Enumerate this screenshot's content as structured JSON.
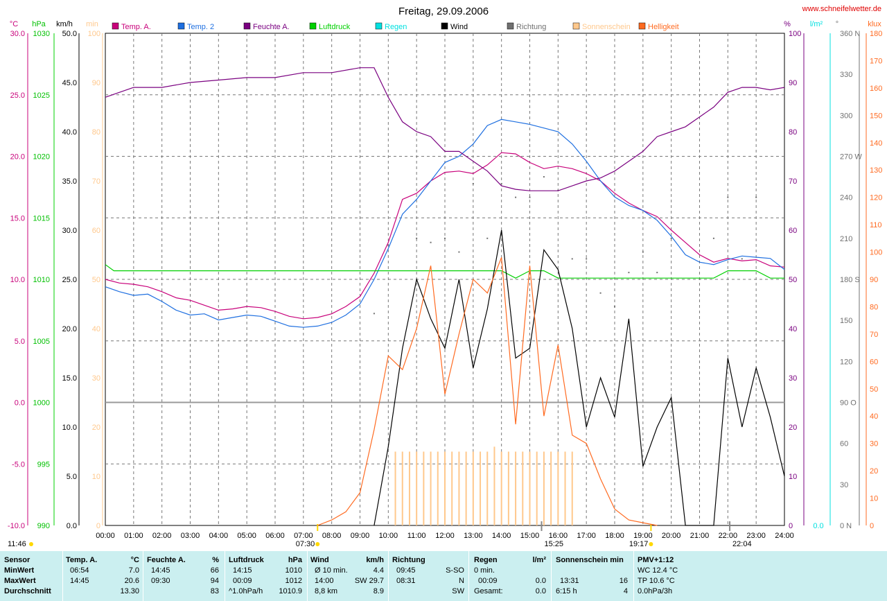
{
  "title": "Freitag, 29.09.2006",
  "site": "www.schneifelwetter.de",
  "colors": {
    "temp_a": "#c8007a",
    "temp2": "#1e6fe0",
    "feuchte": "#7a0080",
    "luftdruck": "#00d000",
    "regen": "#00e0e0",
    "wind": "#000000",
    "richtung": "#707070",
    "sonnenschein": "#ffc88c",
    "helligkeit": "#ff6a20",
    "grid": "#777777",
    "summary_bg": "#cbeff0"
  },
  "legend": [
    {
      "label": "Temp. A.",
      "color": "#c8007a"
    },
    {
      "label": "Temp. 2",
      "color": "#1e6fe0"
    },
    {
      "label": "Feuchte A.",
      "color": "#7a0080"
    },
    {
      "label": "Luftdruck",
      "color": "#00d000"
    },
    {
      "label": "Regen",
      "color": "#00e0e0"
    },
    {
      "label": "Wind",
      "color": "#000000"
    },
    {
      "label": "Richtung",
      "color": "#707070"
    },
    {
      "label": "Sonnenschein",
      "color": "#ffc88c"
    },
    {
      "label": "Helligkeit",
      "color": "#ff6a20"
    }
  ],
  "axes": {
    "temp": {
      "unit": "°C",
      "color": "#c8007a",
      "ticks": [
        "30.0",
        "25.0",
        "20.0",
        "15.0",
        "10.0",
        "5.0",
        "0.0",
        "-5.0",
        "-10.0"
      ]
    },
    "pressure": {
      "unit": "hPa",
      "color": "#00c000",
      "ticks": [
        "1030",
        "1025",
        "1020",
        "1015",
        "1010",
        "1005",
        "1000",
        "995",
        "990"
      ]
    },
    "wind": {
      "unit": "km/h",
      "color": "#000000",
      "ticks": [
        "50.0",
        "45.0",
        "40.0",
        "35.0",
        "30.0",
        "25.0",
        "20.0",
        "15.0",
        "10.0",
        "5.0",
        "0.0"
      ]
    },
    "sun": {
      "unit": "min",
      "color": "#ffc88c",
      "ticks": [
        "100",
        "90",
        "80",
        "70",
        "60",
        "50",
        "40",
        "30",
        "20",
        "10",
        "0"
      ]
    },
    "humidity": {
      "unit": "%",
      "color": "#7a0080",
      "ticks": [
        "100",
        "90",
        "80",
        "70",
        "60",
        "50",
        "40",
        "30",
        "20",
        "10",
        "0"
      ]
    },
    "rain": {
      "unit": "l/m²",
      "color": "#00e0e0",
      "ticks": [
        "0.0"
      ]
    },
    "direction": {
      "unit": "°",
      "color": "#707070",
      "ticks": [
        "360 N",
        "330",
        "300",
        "270 W",
        "240",
        "210",
        "180 S",
        "150",
        "120",
        "90 O",
        "60",
        "30",
        "0 N"
      ]
    },
    "lux": {
      "unit": "klux",
      "color": "#ff6a20",
      "ticks": [
        "180",
        "170",
        "160",
        "150",
        "140",
        "130",
        "120",
        "110",
        "100",
        "90",
        "80",
        "70",
        "60",
        "50",
        "40",
        "30",
        "20",
        "10",
        "0"
      ]
    },
    "time": {
      "ticks": [
        "00:00",
        "01:00",
        "02:00",
        "03:00",
        "04:00",
        "05:00",
        "06:00",
        "07:00",
        "08:00",
        "09:00",
        "10:00",
        "11:00",
        "12:00",
        "13:00",
        "14:00",
        "15:00",
        "16:00",
        "17:00",
        "18:00",
        "19:00",
        "20:00",
        "21:00",
        "22:00",
        "23:00",
        "24:00"
      ]
    }
  },
  "markers": {
    "sunrise": "07:30",
    "sunset": "19:17",
    "noon": "15:25",
    "max_marker": "22:04",
    "moonset": "11:46"
  },
  "chart_data": {
    "type": "line",
    "title": "Freitag, 29.09.2006",
    "x_unit": "hours",
    "series": [
      {
        "name": "Temp. A.",
        "axis": "°C",
        "points": [
          [
            0,
            10
          ],
          [
            0.5,
            9.7
          ],
          [
            1,
            9.6
          ],
          [
            1.5,
            9.4
          ],
          [
            2,
            9
          ],
          [
            2.5,
            8.5
          ],
          [
            3,
            8.3
          ],
          [
            3.5,
            7.9
          ],
          [
            4,
            7.5
          ],
          [
            4.5,
            7.6
          ],
          [
            5,
            7.8
          ],
          [
            5.5,
            7.7
          ],
          [
            6,
            7.4
          ],
          [
            6.5,
            7
          ],
          [
            7,
            6.8
          ],
          [
            7.5,
            6.9
          ],
          [
            8,
            7.2
          ],
          [
            8.5,
            7.8
          ],
          [
            9,
            8.6
          ],
          [
            9.5,
            10.5
          ],
          [
            10,
            13
          ],
          [
            10.5,
            16.5
          ],
          [
            11,
            17
          ],
          [
            11.5,
            18
          ],
          [
            12,
            18.7
          ],
          [
            12.5,
            18.8
          ],
          [
            13,
            18.6
          ],
          [
            13.5,
            19.3
          ],
          [
            14,
            20.3
          ],
          [
            14.5,
            20.2
          ],
          [
            15,
            19.5
          ],
          [
            15.5,
            19
          ],
          [
            16,
            19.2
          ],
          [
            16.5,
            19
          ],
          [
            17,
            18.6
          ],
          [
            17.5,
            18
          ],
          [
            18,
            17
          ],
          [
            18.5,
            16.2
          ],
          [
            19,
            15.6
          ],
          [
            19.5,
            15.1
          ],
          [
            20,
            14
          ],
          [
            20.5,
            13
          ],
          [
            21,
            12
          ],
          [
            21.5,
            11.4
          ],
          [
            22,
            11.7
          ],
          [
            22.5,
            11.5
          ],
          [
            23,
            11.6
          ],
          [
            23.5,
            11.1
          ],
          [
            24,
            11
          ]
        ]
      },
      {
        "name": "Temp. 2",
        "axis": "°C",
        "points": [
          [
            0,
            9.4
          ],
          [
            0.5,
            9
          ],
          [
            1,
            8.7
          ],
          [
            1.5,
            8.8
          ],
          [
            2,
            8.2
          ],
          [
            2.5,
            7.5
          ],
          [
            3,
            7.1
          ],
          [
            3.5,
            7.2
          ],
          [
            4,
            6.7
          ],
          [
            4.5,
            6.9
          ],
          [
            5,
            7.1
          ],
          [
            5.5,
            7
          ],
          [
            6,
            6.6
          ],
          [
            6.5,
            6.2
          ],
          [
            7,
            6.1
          ],
          [
            7.5,
            6.2
          ],
          [
            8,
            6.5
          ],
          [
            8.5,
            7.1
          ],
          [
            9,
            8
          ],
          [
            9.5,
            10
          ],
          [
            10,
            12.5
          ],
          [
            10.5,
            15.3
          ],
          [
            11,
            16.5
          ],
          [
            11.5,
            18
          ],
          [
            12,
            19.5
          ],
          [
            12.5,
            20
          ],
          [
            13,
            21
          ],
          [
            13.5,
            22.5
          ],
          [
            14,
            23
          ],
          [
            14.5,
            22.8
          ],
          [
            15,
            22.6
          ],
          [
            15.5,
            22.3
          ],
          [
            16,
            22
          ],
          [
            16.5,
            21
          ],
          [
            17,
            19.6
          ],
          [
            17.5,
            18
          ],
          [
            18,
            16.7
          ],
          [
            18.5,
            16
          ],
          [
            19,
            15.6
          ],
          [
            19.5,
            14.8
          ],
          [
            20,
            13.5
          ],
          [
            20.5,
            12
          ],
          [
            21,
            11.4
          ],
          [
            21.5,
            11.2
          ],
          [
            22,
            11.6
          ],
          [
            22.5,
            11.9
          ],
          [
            23,
            11.8
          ],
          [
            23.5,
            11.7
          ],
          [
            24,
            10.8
          ]
        ]
      },
      {
        "name": "Feuchte A.",
        "axis": "%",
        "points": [
          [
            0,
            87
          ],
          [
            0.5,
            88
          ],
          [
            1,
            89
          ],
          [
            2,
            89
          ],
          [
            3,
            90
          ],
          [
            4,
            90.5
          ],
          [
            5,
            91
          ],
          [
            6,
            91
          ],
          [
            7,
            92
          ],
          [
            8,
            92
          ],
          [
            9,
            93
          ],
          [
            9.5,
            93
          ],
          [
            10,
            87
          ],
          [
            10.5,
            82
          ],
          [
            11,
            80
          ],
          [
            11.5,
            79
          ],
          [
            12,
            76
          ],
          [
            12.5,
            76
          ],
          [
            13,
            74
          ],
          [
            13.5,
            72
          ],
          [
            14,
            69
          ],
          [
            14.5,
            68.3
          ],
          [
            15,
            68
          ],
          [
            15.5,
            68
          ],
          [
            16,
            68
          ],
          [
            16.5,
            69
          ],
          [
            17,
            70
          ],
          [
            17.5,
            70.6
          ],
          [
            18,
            72
          ],
          [
            18.5,
            74
          ],
          [
            19,
            76
          ],
          [
            19.5,
            79
          ],
          [
            20,
            80
          ],
          [
            20.5,
            81
          ],
          [
            21,
            83
          ],
          [
            21.5,
            85
          ],
          [
            22,
            88
          ],
          [
            22.5,
            89
          ],
          [
            23,
            89
          ],
          [
            23.5,
            88.5
          ],
          [
            24,
            89
          ]
        ]
      },
      {
        "name": "Luftdruck",
        "axis": "hPa",
        "points": [
          [
            0,
            1011.2
          ],
          [
            0.3,
            1010.7
          ],
          [
            14,
            1010.7
          ],
          [
            14.5,
            1010.1
          ],
          [
            15,
            1010.7
          ],
          [
            15.5,
            1010.7
          ],
          [
            16,
            1010.1
          ],
          [
            21.5,
            1010.1
          ],
          [
            22,
            1010.7
          ],
          [
            23,
            1010.7
          ],
          [
            23.5,
            1010.1
          ],
          [
            24,
            1010.1
          ]
        ]
      },
      {
        "name": "Wind",
        "axis": "km/h",
        "points": [
          [
            9.5,
            0
          ],
          [
            10,
            8
          ],
          [
            10.5,
            18
          ],
          [
            11,
            25
          ],
          [
            11.5,
            21
          ],
          [
            12,
            18
          ],
          [
            12.5,
            25
          ],
          [
            13,
            16
          ],
          [
            13.5,
            22
          ],
          [
            14,
            30
          ],
          [
            14.5,
            17
          ],
          [
            15,
            18
          ],
          [
            15.5,
            28
          ],
          [
            16,
            26
          ],
          [
            16.5,
            20
          ],
          [
            17,
            10
          ],
          [
            17.5,
            15
          ],
          [
            18,
            11
          ],
          [
            18.5,
            21
          ],
          [
            19,
            6
          ],
          [
            19.5,
            10
          ],
          [
            20,
            13
          ],
          [
            20.5,
            0
          ],
          [
            21.5,
            0
          ],
          [
            22,
            17
          ],
          [
            22.5,
            10
          ],
          [
            23,
            16
          ],
          [
            23.5,
            11
          ],
          [
            24,
            5
          ]
        ]
      },
      {
        "name": "Helligkeit",
        "axis": "klux",
        "points": [
          [
            7.5,
            0
          ],
          [
            8,
            2
          ],
          [
            8.5,
            5
          ],
          [
            9,
            12
          ],
          [
            9.5,
            35
          ],
          [
            10,
            62
          ],
          [
            10.5,
            57
          ],
          [
            11,
            72
          ],
          [
            11.5,
            95
          ],
          [
            12,
            48
          ],
          [
            12.5,
            70
          ],
          [
            13,
            90
          ],
          [
            13.5,
            85
          ],
          [
            14,
            98
          ],
          [
            14.5,
            37
          ],
          [
            15,
            95
          ],
          [
            15.5,
            40
          ],
          [
            16,
            66
          ],
          [
            16.5,
            33
          ],
          [
            17,
            30
          ],
          [
            17.5,
            17
          ],
          [
            18,
            6
          ],
          [
            18.5,
            2
          ],
          [
            19,
            1
          ],
          [
            19.5,
            0
          ]
        ]
      }
    ],
    "sunshine_min": {
      "x": [
        10.25,
        10.5,
        10.75,
        11,
        11.25,
        11.5,
        11.75,
        12,
        12.25,
        12.5,
        12.75,
        13,
        13.25,
        13.5,
        13.75,
        14,
        14.25,
        14.5,
        14.75,
        15,
        15.25,
        15.5,
        15.75,
        16,
        16.25,
        16.5
      ],
      "y": [
        15,
        15,
        15,
        15,
        15,
        15,
        15,
        15,
        15,
        15,
        15,
        15,
        15,
        15,
        16,
        15,
        15,
        15,
        15,
        15,
        15,
        15,
        15,
        15,
        15,
        15
      ]
    },
    "direction_deg": {
      "x": [
        9.5,
        10,
        11,
        11.5,
        12,
        12.5,
        13,
        13.5,
        14,
        14.5,
        15,
        15.5,
        16,
        16.5,
        17,
        17.5,
        18,
        18.5,
        19,
        19.5,
        20,
        21.5,
        22,
        22.5,
        23
      ],
      "y": [
        155,
        205,
        210,
        207,
        210,
        200,
        250,
        210,
        250,
        240,
        240,
        255,
        245,
        195,
        195,
        170,
        160,
        185,
        200,
        185,
        210,
        210,
        240,
        195,
        240
      ]
    }
  },
  "summary": {
    "row_labels": [
      "Sensor",
      "MinWert",
      "MaxWert",
      "Durchschnitt"
    ],
    "temp": {
      "header": "Temp. A.",
      "unit": "°C",
      "min_time": "06:54",
      "min": "7.0",
      "max_time": "14:45",
      "max": "20.6",
      "avg": "13.30"
    },
    "feuchte": {
      "header": "Feuchte A.",
      "unit": "%",
      "min_time": "14:45",
      "min": "66",
      "max_time": "09:30",
      "max": "94",
      "avg": "83"
    },
    "luftdruck": {
      "header": "Luftdruck",
      "unit": "hPa",
      "min_time": "14:15",
      "min": "1010",
      "max_time": "00:09",
      "max": "1012",
      "trend": "^1.0hPa/h",
      "avg": "1010.9"
    },
    "wind": {
      "header": "Wind",
      "unit": "km/h",
      "min_label": "Ø 10 min.",
      "min": "4.4",
      "max_time": "14:00",
      "max": "SW 29.7",
      "dist": "8,8 km",
      "avg": "8.9"
    },
    "richtung": {
      "header": "Richtung",
      "min_time": "09:45",
      "min": "S-SO",
      "max_time": "08:31",
      "max": "N",
      "avg": "SW"
    },
    "regen": {
      "header": "Regen",
      "unit": "l/m²",
      "min_label": "0 min.",
      "max_time": "00:09",
      "max": "0.0",
      "avg_label": "Gesamt:",
      "avg": "0.0"
    },
    "sonne": {
      "header": "Sonnenschein min",
      "max_time": "13:31",
      "max": "16",
      "avg_label": "6:15 h",
      "avg": "4"
    },
    "pmv": {
      "header": "PMV+1:12",
      "wc": "WC 12.4 °C",
      "tp": "TP 10.6 °C",
      "trend": "0.0hPa/3h"
    }
  }
}
